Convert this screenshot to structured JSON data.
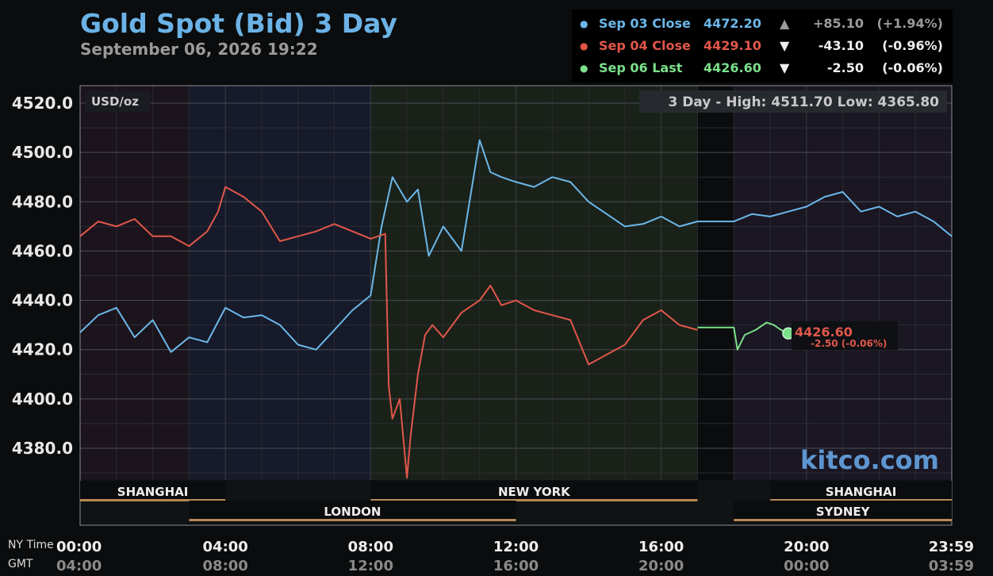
{
  "header": {
    "title": "Gold Spot (Bid) 3 Day",
    "subtitle": "September 06, 2026 19:22"
  },
  "legend": [
    {
      "label": "Sep 03 Close",
      "price": "4472.20",
      "arrow": "▲",
      "change": "+85.10",
      "pct": "(+1.94%)",
      "color": "#6bb7e8",
      "arrow_color": "#9a9a9a",
      "chg_color": "#9a9a9a"
    },
    {
      "label": "Sep 04 Close",
      "price": "4429.10",
      "arrow": "▼",
      "change": "-43.10",
      "pct": "(-0.96%)",
      "color": "#e0574a",
      "arrow_color": "#eeeeee",
      "chg_color": "#eeeeee"
    },
    {
      "label": "Sep 06 Last",
      "price": "4426.60",
      "arrow": "▼",
      "change": "-2.50",
      "pct": "(-0.06%)",
      "color": "#7be08a",
      "arrow_color": "#eeeeee",
      "chg_color": "#eeeeee"
    }
  ],
  "plot": {
    "unit_label": "USD/oz",
    "high_low": "3 Day - High: 4511.70  Low: 4365.80",
    "last_price": "4426.60",
    "last_change": "-2.50 (-0.06%)",
    "watermark": "kitco.com",
    "x_title_ny": "NY Time",
    "x_title_gmt": "GMT"
  },
  "sessions": [
    {
      "name": "SHANGHAI",
      "row": 1,
      "start": 0,
      "end": 4
    },
    {
      "name": "NEW YORK",
      "row": 1,
      "start": 8,
      "end": 17
    },
    {
      "name": "SHANGHAI",
      "row": 1,
      "start": 19,
      "end": 24
    },
    {
      "name": "LONDON",
      "row": 2,
      "start": 3,
      "end": 12
    },
    {
      "name": "SYDNEY",
      "row": 2,
      "start": 18,
      "end": 24
    }
  ],
  "chart_data": {
    "type": "line",
    "title": "Gold Spot (Bid) 3 Day",
    "ylabel": "USD/oz",
    "ylim": [
      4360,
      4522
    ],
    "xlim": [
      0,
      24
    ],
    "y_ticks": [
      "4520.0",
      "4500.0",
      "4480.0",
      "4460.0",
      "4440.0",
      "4420.0",
      "4400.0",
      "4380.0"
    ],
    "y_tick_values": [
      4520,
      4500,
      4480,
      4460,
      4440,
      4420,
      4400,
      4380
    ],
    "x_ticks_ny": [
      "00:00",
      "04:00",
      "08:00",
      "12:00",
      "16:00",
      "20:00",
      "23:59"
    ],
    "x_ticks_gmt": [
      "04:00",
      "08:00",
      "12:00",
      "16:00",
      "20:00",
      "00:00",
      "03:59"
    ],
    "x_tick_hours": [
      0,
      4,
      8,
      12,
      16,
      20,
      24
    ],
    "grid": true,
    "series": [
      {
        "name": "Sep 03 Close",
        "color": "#6bb7e8",
        "x": [
          0,
          0.5,
          1,
          1.5,
          2,
          2.5,
          3,
          3.5,
          4,
          4.5,
          5,
          5.5,
          6,
          6.5,
          7,
          7.5,
          8,
          8.3,
          8.6,
          9,
          9.3,
          9.6,
          10,
          10.5,
          11,
          11.3,
          11.6,
          12,
          12.5,
          13,
          13.5,
          14,
          14.5,
          15,
          15.5,
          16,
          16.5,
          17,
          18,
          18.5,
          19,
          19.5,
          20,
          20.5,
          21,
          21.5,
          22,
          22.5,
          23,
          23.5,
          24
        ],
        "y": [
          4427,
          4434,
          4437,
          4425,
          4432,
          4419,
          4425,
          4423,
          4437,
          4433,
          4434,
          4430,
          4422,
          4420,
          4428,
          4436,
          4442,
          4470,
          4490,
          4480,
          4485,
          4458,
          4470,
          4460,
          4505,
          4492,
          4490,
          4488,
          4486,
          4490,
          4488,
          4480,
          4475,
          4470,
          4471,
          4474,
          4470,
          4472,
          4472,
          4475,
          4474,
          4476,
          4478,
          4482,
          4484,
          4476,
          4478,
          4474,
          4476,
          4472,
          4466
        ]
      },
      {
        "name": "Sep 04 Close",
        "color": "#e0574a",
        "x": [
          0,
          0.5,
          1,
          1.5,
          2,
          2.5,
          3,
          3.5,
          3.8,
          4,
          4.5,
          5,
          5.5,
          6,
          6.5,
          7,
          7.5,
          8,
          8.4,
          8.5,
          8.6,
          8.8,
          9,
          9.1,
          9.3,
          9.5,
          9.7,
          10,
          10.5,
          11,
          11.3,
          11.6,
          12,
          12.5,
          13,
          13.5,
          14,
          14.5,
          15,
          15.5,
          16,
          16.5,
          17
        ],
        "y": [
          4466,
          4472,
          4470,
          4473,
          4466,
          4466,
          4462,
          4468,
          4476,
          4486,
          4482,
          4476,
          4464,
          4466,
          4468,
          4471,
          4468,
          4465,
          4467,
          4405,
          4392,
          4400,
          4368,
          4385,
          4410,
          4426,
          4430,
          4425,
          4435,
          4440,
          4446,
          4438,
          4440,
          4436,
          4434,
          4432,
          4414,
          4418,
          4422,
          4432,
          4436,
          4430,
          4428
        ]
      },
      {
        "name": "Sep 06 Last",
        "color": "#7be08a",
        "x": [
          17,
          17.5,
          18,
          18.1,
          18.3,
          18.6,
          18.9,
          19.1,
          19.3,
          19.5
        ],
        "y": [
          4429,
          4429,
          4429,
          4420,
          4426,
          4428,
          4431,
          4430,
          4428,
          4426.6
        ]
      }
    ]
  }
}
